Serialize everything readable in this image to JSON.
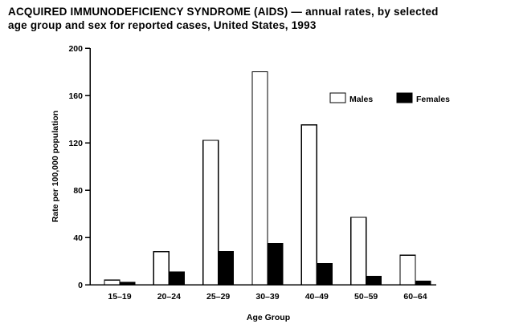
{
  "title": {
    "line1": "ACQUIRED IMMUNODEFICIENCY SYNDROME (AIDS) — annual rates, by selected",
    "line2": "age group and sex for reported cases, United States, 1993"
  },
  "chart_data": {
    "type": "bar",
    "categories": [
      "15–19",
      "20–24",
      "25–29",
      "30–39",
      "40–49",
      "50–59",
      "60–64"
    ],
    "series": [
      {
        "name": "Males",
        "fill": "#ffffff",
        "values": [
          4,
          28,
          122,
          180,
          135,
          57,
          25
        ]
      },
      {
        "name": "Females",
        "fill": "#000000",
        "values": [
          2,
          11,
          28,
          35,
          18,
          7,
          3
        ]
      }
    ],
    "title": "ACQUIRED IMMUNODEFICIENCY SYNDROME (AIDS) — annual rates, by selected age group and sex for reported cases, United States, 1993",
    "xlabel": "Age Group",
    "ylabel": "Rate per 100,000 population",
    "ylim": [
      0,
      200
    ],
    "yticks": [
      0,
      40,
      80,
      120,
      160,
      200
    ],
    "grid": false,
    "legend_position": "upper-right",
    "bar_outline_color": "#000000",
    "background_color": "#ffffff",
    "legend": [
      {
        "label": "Males",
        "swatch": "#ffffff"
      },
      {
        "label": "Females",
        "swatch": "#000000"
      }
    ]
  }
}
